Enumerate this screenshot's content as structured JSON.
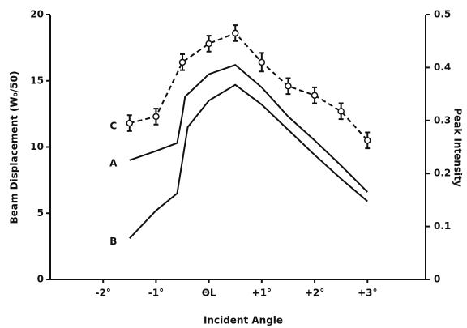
{
  "chart_data": {
    "type": "line",
    "xlabel": "Incident Angle",
    "ylabel": "Beam Displacement (W₀/50)",
    "y2label": "Peak Intensity",
    "xlim": [
      -3.0,
      4.1
    ],
    "xticks": [
      {
        "value": -2,
        "label": "-2°"
      },
      {
        "value": -1,
        "label": "-1°"
      },
      {
        "value": 0,
        "label": "ΘL"
      },
      {
        "value": 1,
        "label": "+1°"
      },
      {
        "value": 2,
        "label": "+2°"
      },
      {
        "value": 3,
        "label": "+3°"
      }
    ],
    "ylim": [
      0,
      20
    ],
    "yticks": [
      0,
      5,
      10,
      15,
      20
    ],
    "y2lim": [
      0,
      0.5
    ],
    "y2ticks": [
      0,
      0.1,
      0.2,
      0.3,
      0.4,
      0.5
    ],
    "series": [
      {
        "name": "A",
        "color": "#111111",
        "style": "solid",
        "x": [
          -1.5,
          -1.0,
          -0.6,
          -0.5,
          -0.45,
          0,
          0.5,
          1.0,
          1.5,
          2.0,
          2.5,
          3.0
        ],
        "values": [
          9.0,
          9.7,
          10.3,
          12.5,
          13.8,
          15.5,
          16.2,
          14.5,
          12.3,
          10.5,
          8.6,
          6.6
        ]
      },
      {
        "name": "B",
        "color": "#111111",
        "style": "solid",
        "x": [
          -1.5,
          -1.0,
          -0.6,
          -0.5,
          -0.4,
          0,
          0.5,
          1.0,
          1.5,
          2.0,
          2.5,
          3.0
        ],
        "values": [
          3.1,
          5.2,
          6.5,
          9.0,
          11.5,
          13.5,
          14.7,
          13.2,
          11.3,
          9.4,
          7.6,
          5.9
        ]
      },
      {
        "name": "C",
        "color": "#111111",
        "style": "dashed",
        "x": [
          -1.5,
          -1.0,
          -0.5,
          0,
          0.5,
          1.0,
          1.5,
          2.0,
          2.5,
          3.0
        ],
        "values": [
          11.8,
          12.3,
          16.4,
          17.8,
          18.6,
          16.4,
          14.6,
          13.9,
          12.7,
          10.5
        ],
        "errors": [
          0.6,
          0.6,
          0.6,
          0.6,
          0.6,
          0.7,
          0.6,
          0.6,
          0.6,
          0.6
        ]
      }
    ]
  }
}
